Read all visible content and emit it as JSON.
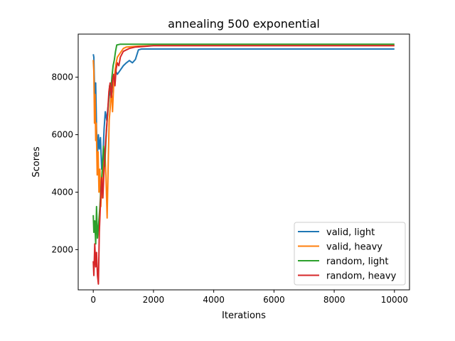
{
  "chart_data": {
    "type": "line",
    "title": "annealing 500 exponential",
    "xlabel": "Iterations",
    "ylabel": "Scores",
    "xlim": [
      -500,
      10500
    ],
    "ylim": [
      600,
      9500
    ],
    "xticks": [
      0,
      2000,
      4000,
      6000,
      8000,
      10000
    ],
    "yticks": [
      2000,
      4000,
      6000,
      8000
    ],
    "grid": false,
    "legend_position": "lower-right",
    "series": [
      {
        "name": "valid, light",
        "color": "#1f77b4",
        "points": [
          [
            0,
            8800
          ],
          [
            20,
            8700
          ],
          [
            50,
            7200
          ],
          [
            80,
            7800
          ],
          [
            110,
            6200
          ],
          [
            140,
            5300
          ],
          [
            170,
            6000
          ],
          [
            200,
            5500
          ],
          [
            240,
            5900
          ],
          [
            280,
            4800
          ],
          [
            320,
            5200
          ],
          [
            360,
            6200
          ],
          [
            400,
            6800
          ],
          [
            450,
            6500
          ],
          [
            500,
            7100
          ],
          [
            550,
            7500
          ],
          [
            600,
            7300
          ],
          [
            650,
            7800
          ],
          [
            700,
            8000
          ],
          [
            750,
            8200
          ],
          [
            800,
            8100
          ],
          [
            900,
            8250
          ],
          [
            1000,
            8400
          ],
          [
            1100,
            8500
          ],
          [
            1200,
            8580
          ],
          [
            1300,
            8500
          ],
          [
            1400,
            8620
          ],
          [
            1500,
            8950
          ],
          [
            1600,
            8980
          ],
          [
            2000,
            8980
          ],
          [
            10000,
            8980
          ]
        ]
      },
      {
        "name": "valid, heavy",
        "color": "#ff7f0e",
        "points": [
          [
            0,
            8600
          ],
          [
            20,
            8200
          ],
          [
            40,
            6400
          ],
          [
            60,
            7400
          ],
          [
            80,
            5800
          ],
          [
            100,
            6400
          ],
          [
            130,
            4600
          ],
          [
            160,
            5400
          ],
          [
            190,
            4000
          ],
          [
            220,
            4800
          ],
          [
            250,
            3500
          ],
          [
            280,
            4300
          ],
          [
            310,
            3800
          ],
          [
            340,
            4900
          ],
          [
            380,
            5500
          ],
          [
            420,
            4600
          ],
          [
            460,
            3100
          ],
          [
            500,
            5200
          ],
          [
            530,
            6500
          ],
          [
            560,
            6900
          ],
          [
            600,
            7600
          ],
          [
            640,
            6800
          ],
          [
            680,
            7800
          ],
          [
            720,
            8200
          ],
          [
            760,
            8500
          ],
          [
            800,
            8700
          ],
          [
            900,
            8850
          ],
          [
            1000,
            9000
          ],
          [
            1100,
            9050
          ],
          [
            1500,
            9080
          ],
          [
            2000,
            9100
          ],
          [
            10000,
            9100
          ]
        ]
      },
      {
        "name": "random, light",
        "color": "#2ca02c",
        "points": [
          [
            0,
            3200
          ],
          [
            20,
            2600
          ],
          [
            50,
            3000
          ],
          [
            80,
            2200
          ],
          [
            110,
            3500
          ],
          [
            140,
            2400
          ],
          [
            180,
            2900
          ],
          [
            220,
            3500
          ],
          [
            260,
            4200
          ],
          [
            300,
            4800
          ],
          [
            340,
            5600
          ],
          [
            380,
            4900
          ],
          [
            420,
            5800
          ],
          [
            460,
            6500
          ],
          [
            500,
            7000
          ],
          [
            540,
            7700
          ],
          [
            580,
            7500
          ],
          [
            620,
            8000
          ],
          [
            660,
            8400
          ],
          [
            700,
            8600
          ],
          [
            740,
            8900
          ],
          [
            780,
            9120
          ],
          [
            900,
            9150
          ],
          [
            2000,
            9150
          ],
          [
            10000,
            9150
          ]
        ]
      },
      {
        "name": "random, heavy",
        "color": "#d62728",
        "points": [
          [
            0,
            1600
          ],
          [
            20,
            1100
          ],
          [
            50,
            2200
          ],
          [
            80,
            1400
          ],
          [
            110,
            1900
          ],
          [
            140,
            1100
          ],
          [
            170,
            800
          ],
          [
            200,
            2600
          ],
          [
            240,
            3600
          ],
          [
            280,
            4500
          ],
          [
            320,
            3800
          ],
          [
            360,
            4800
          ],
          [
            400,
            5600
          ],
          [
            440,
            6200
          ],
          [
            480,
            6800
          ],
          [
            520,
            7500
          ],
          [
            560,
            7800
          ],
          [
            600,
            7300
          ],
          [
            640,
            7900
          ],
          [
            680,
            8100
          ],
          [
            720,
            7700
          ],
          [
            760,
            8300
          ],
          [
            800,
            8500
          ],
          [
            850,
            8400
          ],
          [
            900,
            8700
          ],
          [
            950,
            8800
          ],
          [
            1000,
            8900
          ],
          [
            1100,
            8950
          ],
          [
            1200,
            9000
          ],
          [
            1400,
            9050
          ],
          [
            1700,
            9070
          ],
          [
            2000,
            9100
          ],
          [
            10000,
            9100
          ]
        ]
      }
    ]
  }
}
